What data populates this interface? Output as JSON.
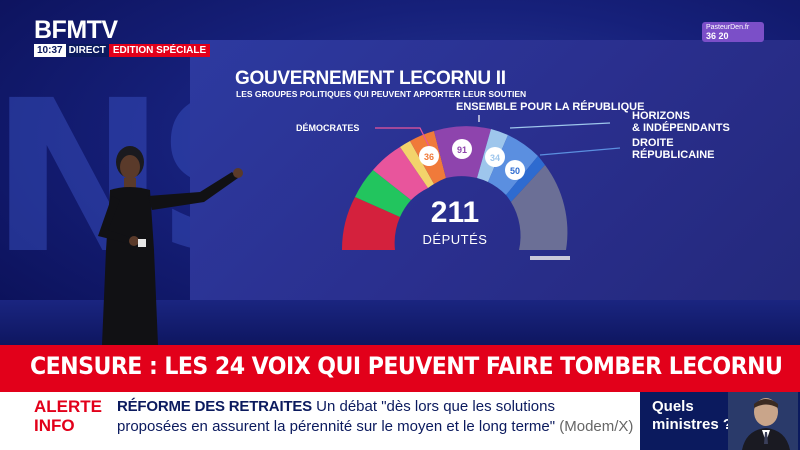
{
  "channel": {
    "logo": "BFMTV",
    "time": "10:37",
    "live": "DIRECT",
    "edition": "EDITION SPÉCIALE"
  },
  "partner": {
    "line1": "PasteurDen.fr",
    "line2": "36 20"
  },
  "graphic": {
    "title": "GOUVERNEMENT LECORNU II",
    "subtitle": "LES GROUPES POLITIQUES QUI PEUVENT APPORTER LEUR SOUTIEN",
    "total_value": "211",
    "total_unit": "DÉPUTÉS",
    "labels": {
      "democrates": "DÉMOCRATES",
      "ensemble": "ENSEMBLE POUR LA RÉPUBLIQUE",
      "horizons_1": "HORIZONS",
      "horizons_2": "& INDÉPENDANTS",
      "droite_1": "DROITE",
      "droite_2": "RÉPUBLICAINE"
    },
    "seat_values": {
      "democrates": "36",
      "ensemble": "91",
      "horizons": "34",
      "droite": "50"
    },
    "colors": {
      "red": "#d4213d",
      "green": "#22c55e",
      "pink": "#e8559c",
      "yellow": "#f3d36b",
      "orange": "#f07a3a",
      "purple": "#8e44ad",
      "lightblue": "#9ec6ec",
      "blue": "#2e6bd0",
      "gray": "#6b6f96"
    }
  },
  "headline": "CENSURE : LES 24 VOIX QUI PEUVENT FAIRE TOMBER LECORNU",
  "ticker": {
    "alert_1": "ALERTE",
    "alert_2": "INFO",
    "topic": "RÉFORME DES RETRAITES",
    "text_1": "Un débat \"dès lors que les solutions",
    "text_2": "proposées en assurent la pérennité sur le moyen et le long terme\"",
    "source": "(Modem/X)"
  },
  "side_panel": {
    "line1": "Quels",
    "line2": "ministres ?"
  }
}
